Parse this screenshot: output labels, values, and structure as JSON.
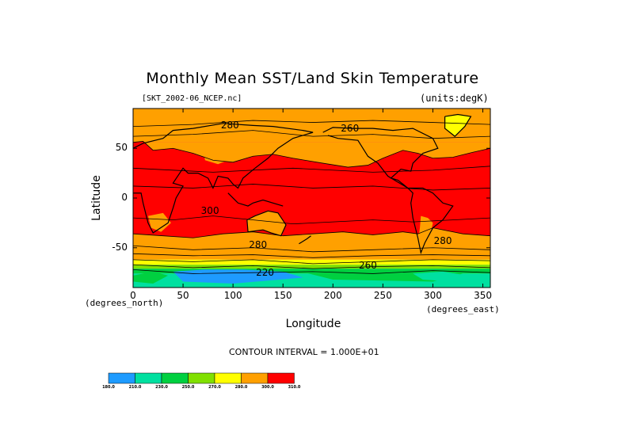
{
  "chart_data": {
    "type": "heatmap",
    "title": "Monthly Mean SST/Land Skin Temperature",
    "file_label": "[SKT_2002-06_NCEP.nc]",
    "units_label": "(units:degK)",
    "xlabel": "Longitude",
    "ylabel": "Latitude",
    "x_units_label": "(degrees_east)",
    "y_units_label": "(degrees_north)",
    "xlim": [
      0,
      357.5
    ],
    "ylim": [
      -90,
      90
    ],
    "x_ticks": [
      0,
      50,
      100,
      150,
      200,
      250,
      300,
      350
    ],
    "y_ticks": [
      50,
      0,
      -50
    ],
    "contour_interval_text": "CONTOUR INTERVAL = 1.000E+01",
    "contour_labels": [
      {
        "text": "280",
        "lon": 97,
        "lat": 70
      },
      {
        "text": "260",
        "lon": 217,
        "lat": 67
      },
      {
        "text": "300",
        "lon": 77,
        "lat": -16
      },
      {
        "text": "280",
        "lon": 125,
        "lat": -50
      },
      {
        "text": "280",
        "lon": 310,
        "lat": -46
      },
      {
        "text": "260",
        "lon": 235,
        "lat": -71
      },
      {
        "text": "220",
        "lon": 132,
        "lat": -78
      }
    ],
    "color_levels": [
      180,
      210,
      230,
      250,
      270,
      280,
      300,
      310
    ],
    "color_level_labels": [
      "180.0",
      "210.0",
      "230.0",
      "250.0",
      "270.0",
      "280.0",
      "300.0",
      "310.0"
    ],
    "colors": [
      "#1e9bff",
      "#00e0a0",
      "#00d040",
      "#80e000",
      "#ffff00",
      "#ffa000",
      "#ff0000"
    ],
    "grid": false
  }
}
